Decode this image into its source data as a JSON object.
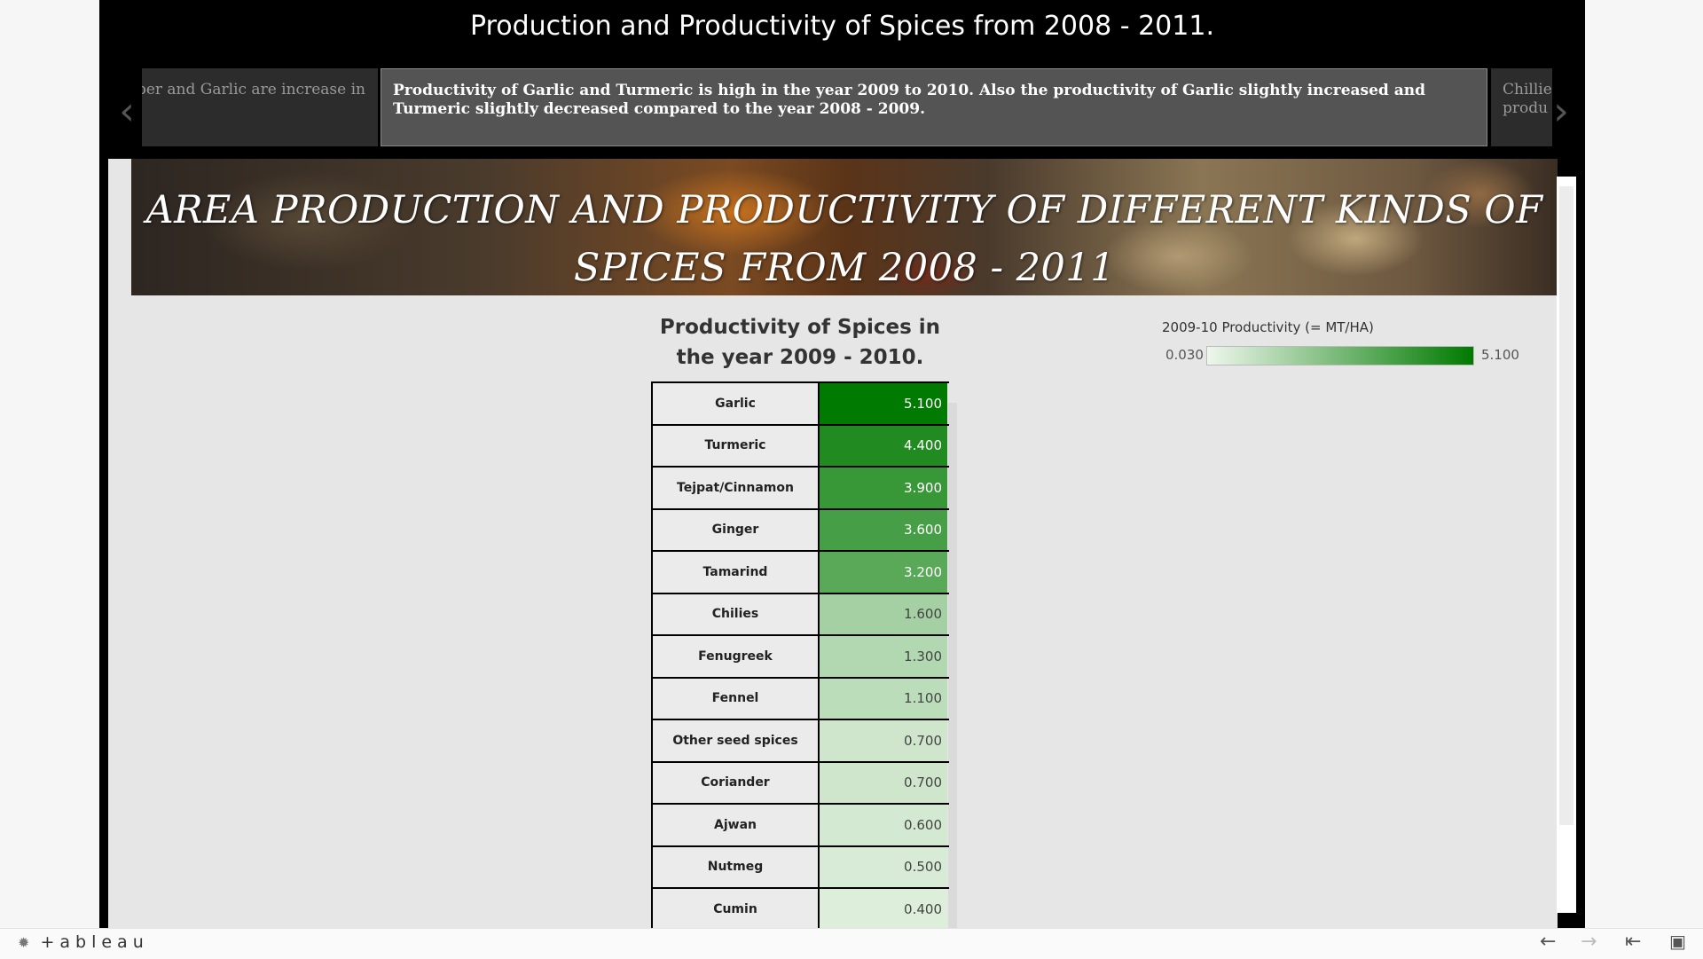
{
  "story": {
    "title": "Production and Productivity of Spices from 2008 - 2011.",
    "nav_prev_icon": "chevron-left-icon",
    "nav_next_icon": "chevron-right-icon",
    "points": [
      {
        "text": "nber and Garlic are increase in"
      },
      {
        "text": "Productivity of Garlic and Turmeric is high  in the year 2009 to 2010. Also the productivity of Garlic slightly increased and Turmeric slightly decreased compared to the year 2008 - 2009."
      },
      {
        "text": "Chillie produ"
      }
    ]
  },
  "dashboard": {
    "banner_title": "AREA PRODUCTION AND PRODUCTIVITY OF DIFFERENT KINDS OF SPICES FROM 2008 - 2011",
    "sheet_title": "Productivity of Spices in the year 2009 - 2010.",
    "legend": {
      "title": "2009-10 Productivity (= MT/HA)",
      "min_label": "0.030",
      "max_label": "5.100",
      "min": 0.03,
      "max": 5.1,
      "color_low": "#eef7ec",
      "color_high": "#007a00"
    }
  },
  "chart_data": {
    "type": "table",
    "title": "Productivity of Spices in the year 2009 - 2010.",
    "measure": "2009-10 Productivity (= MT/HA)",
    "rows": [
      {
        "name": "Garlic",
        "value": 5.1,
        "label": "5.100"
      },
      {
        "name": "Turmeric",
        "value": 4.4,
        "label": "4.400"
      },
      {
        "name": "Tejpat/Cinnamon",
        "value": 3.9,
        "label": "3.900"
      },
      {
        "name": "Ginger",
        "value": 3.6,
        "label": "3.600"
      },
      {
        "name": "Tamarind",
        "value": 3.2,
        "label": "3.200"
      },
      {
        "name": "Chilies",
        "value": 1.6,
        "label": "1.600"
      },
      {
        "name": "Fenugreek",
        "value": 1.3,
        "label": "1.300"
      },
      {
        "name": "Fennel",
        "value": 1.1,
        "label": "1.100"
      },
      {
        "name": "Other seed spices",
        "value": 0.7,
        "label": "0.700"
      },
      {
        "name": "Coriander",
        "value": 0.7,
        "label": "0.700"
      },
      {
        "name": "Ajwan",
        "value": 0.6,
        "label": "0.600"
      },
      {
        "name": "Nutmeg",
        "value": 0.5,
        "label": "0.500"
      },
      {
        "name": "Cumin",
        "value": 0.4,
        "label": "0.400"
      }
    ]
  },
  "footer": {
    "logo_text": "+ableau",
    "logo_icon": "tableau-logo-icon",
    "undo_icon": "undo-arrow-icon",
    "redo_icon": "redo-arrow-icon",
    "revert_icon": "revert-icon",
    "fullscreen_icon": "fullscreen-icon"
  }
}
